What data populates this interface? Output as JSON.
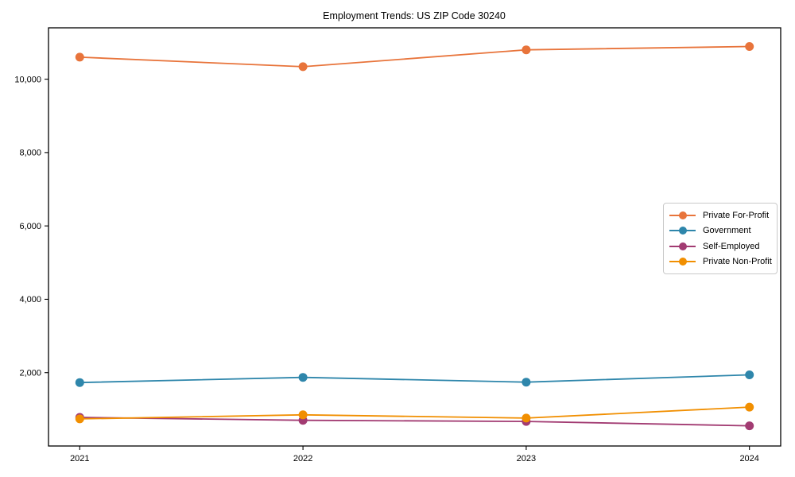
{
  "figure": {
    "background_color": "#ffffff",
    "spine_color": "#000000"
  },
  "chart_data": {
    "type": "line",
    "title": "Employment Trends: US ZIP Code 30240",
    "xlabel": "",
    "ylabel": "",
    "grid": false,
    "legend_position": "center right",
    "legend_border_color": "#c9c9c9",
    "x": [
      2021,
      2022,
      2023,
      2024
    ],
    "xtick_labels": [
      "2021",
      "2022",
      "2023",
      "2024"
    ],
    "ytick_values": [
      2000,
      4000,
      6000,
      8000,
      10000
    ],
    "ytick_labels": [
      "2,000",
      "4,000",
      "6,000",
      "8,000",
      "10,000"
    ],
    "xlim": [
      2020.86,
      2024.14
    ],
    "ylim": [
      0,
      11400
    ],
    "marker": "circle",
    "marker_diameter": 11,
    "line_width": 1.8,
    "series": [
      {
        "name": "Private For-Profit",
        "color": "#E8743B",
        "values": [
          10600,
          10340,
          10800,
          10890
        ]
      },
      {
        "name": "Government",
        "color": "#2E86AB",
        "values": [
          1730,
          1870,
          1740,
          1940
        ]
      },
      {
        "name": "Self-Employed",
        "color": "#A23B72",
        "values": [
          780,
          700,
          670,
          550
        ]
      },
      {
        "name": "Private Non-Profit",
        "color": "#F18F01",
        "values": [
          740,
          850,
          760,
          1060
        ]
      }
    ]
  }
}
